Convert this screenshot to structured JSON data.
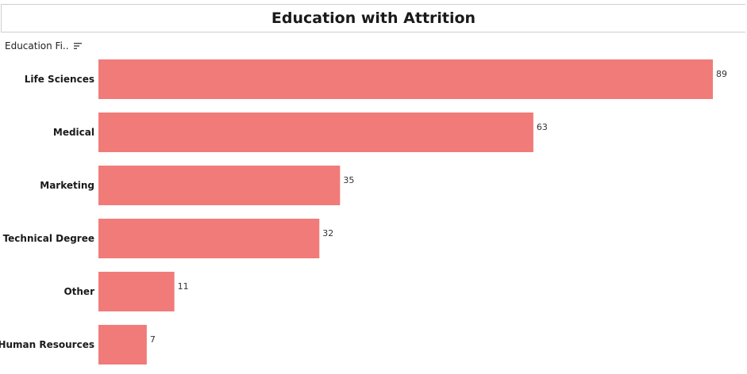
{
  "header": {
    "title": "Education with Attrition",
    "field_label": "Education Fi..",
    "sort_icon": "sort-descending-icon"
  },
  "colors": {
    "bar": "#f07b79"
  },
  "chart_data": {
    "type": "bar",
    "orientation": "horizontal",
    "title": "Education with Attrition",
    "categories": [
      "Life Sciences",
      "Medical",
      "Marketing",
      "Technical Degree",
      "Other",
      "Human Resources"
    ],
    "values": [
      89,
      63,
      35,
      32,
      11,
      7
    ],
    "xlim": [
      0,
      90
    ],
    "grid": false,
    "data_labels": true
  }
}
